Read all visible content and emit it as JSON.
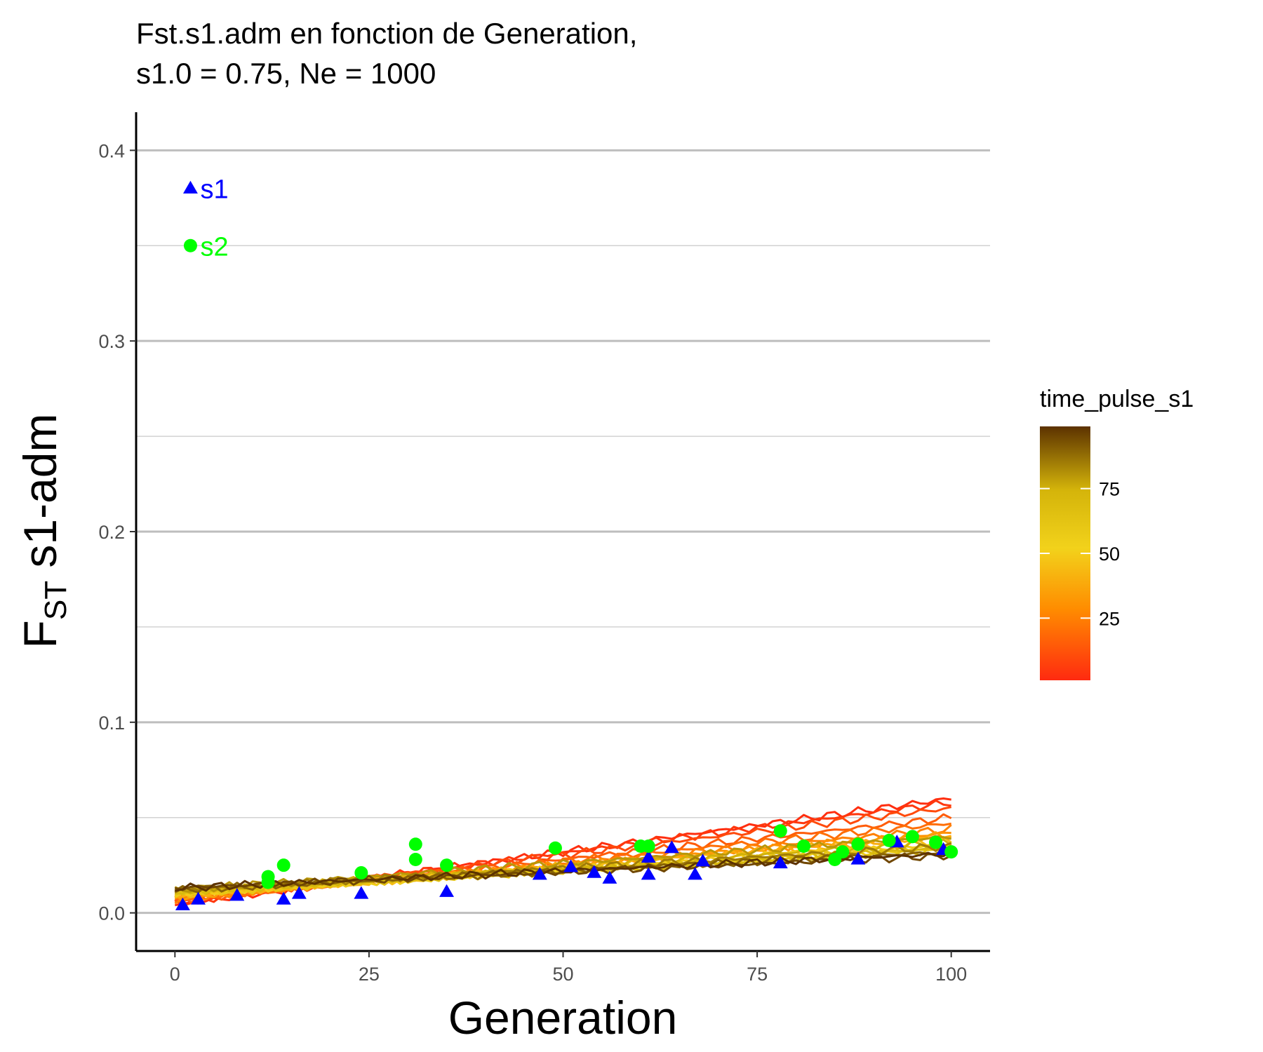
{
  "chart_data": {
    "type": "line",
    "title_line1": "Fst.s1.adm en fonction de Generation,",
    "title_line2": "s1.0 = 0.75, Ne = 1000",
    "xlabel": "Generation",
    "ylabel_main": "F",
    "ylabel_sub": "ST",
    "ylabel_rest": " s1-adm",
    "xlim": [
      -5,
      105
    ],
    "ylim": [
      -0.02,
      0.42
    ],
    "x_ticks": [
      0,
      25,
      50,
      75,
      100
    ],
    "x_tick_labels": [
      "0",
      "25",
      "50",
      "75",
      "100"
    ],
    "y_ticks": [
      0.0,
      0.1,
      0.2,
      0.3,
      0.4
    ],
    "y_tick_labels": [
      "0.0",
      "0.1",
      "0.2",
      "0.3",
      "0.4"
    ],
    "y_minor_gridlines": [
      0.05,
      0.15,
      0.25,
      0.35
    ],
    "grid": "horizontal",
    "legend": {
      "title": "time_pulse_s1",
      "position": "right",
      "type": "colorbar",
      "breaks": [
        25,
        50,
        75
      ],
      "break_labels": [
        "25",
        "50",
        "75"
      ],
      "range": [
        1,
        99
      ],
      "colors": [
        "#ff2a10",
        "#ff8c00",
        "#f2d21b",
        "#d4b40a",
        "#5c3200"
      ]
    },
    "annotations": [
      {
        "label": "s1",
        "marker": "triangle",
        "color": "#0000ff",
        "x": 2,
        "y": 0.38
      },
      {
        "label": "s2",
        "marker": "circle",
        "color": "#00ff00",
        "x": 2,
        "y": 0.35
      }
    ],
    "series": [
      {
        "time_pulse_s1": 2,
        "y0": 0.004,
        "y1": 0.06
      },
      {
        "time_pulse_s1": 5,
        "y0": 0.005,
        "y1": 0.058
      },
      {
        "time_pulse_s1": 10,
        "y0": 0.006,
        "y1": 0.055
      },
      {
        "time_pulse_s1": 15,
        "y0": 0.006,
        "y1": 0.05
      },
      {
        "time_pulse_s1": 20,
        "y0": 0.007,
        "y1": 0.047
      },
      {
        "time_pulse_s1": 25,
        "y0": 0.007,
        "y1": 0.044
      },
      {
        "time_pulse_s1": 30,
        "y0": 0.008,
        "y1": 0.042
      },
      {
        "time_pulse_s1": 35,
        "y0": 0.008,
        "y1": 0.041
      },
      {
        "time_pulse_s1": 40,
        "y0": 0.009,
        "y1": 0.04
      },
      {
        "time_pulse_s1": 45,
        "y0": 0.009,
        "y1": 0.038
      },
      {
        "time_pulse_s1": 50,
        "y0": 0.01,
        "y1": 0.036
      },
      {
        "time_pulse_s1": 55,
        "y0": 0.01,
        "y1": 0.035
      },
      {
        "time_pulse_s1": 60,
        "y0": 0.01,
        "y1": 0.034
      },
      {
        "time_pulse_s1": 65,
        "y0": 0.011,
        "y1": 0.033
      },
      {
        "time_pulse_s1": 70,
        "y0": 0.011,
        "y1": 0.034
      },
      {
        "time_pulse_s1": 75,
        "y0": 0.011,
        "y1": 0.037
      },
      {
        "time_pulse_s1": 80,
        "y0": 0.012,
        "y1": 0.04
      },
      {
        "time_pulse_s1": 85,
        "y0": 0.012,
        "y1": 0.035
      },
      {
        "time_pulse_s1": 90,
        "y0": 0.012,
        "y1": 0.032
      },
      {
        "time_pulse_s1": 95,
        "y0": 0.013,
        "y1": 0.03
      },
      {
        "time_pulse_s1": 99,
        "y0": 0.013,
        "y1": 0.031
      }
    ],
    "points_s1": [
      {
        "x": 1,
        "y": 0.004
      },
      {
        "x": 3,
        "y": 0.007
      },
      {
        "x": 8,
        "y": 0.009
      },
      {
        "x": 14,
        "y": 0.007
      },
      {
        "x": 16,
        "y": 0.01
      },
      {
        "x": 24,
        "y": 0.01
      },
      {
        "x": 35,
        "y": 0.011
      },
      {
        "x": 47,
        "y": 0.02
      },
      {
        "x": 51,
        "y": 0.024
      },
      {
        "x": 54,
        "y": 0.021
      },
      {
        "x": 56,
        "y": 0.018
      },
      {
        "x": 61,
        "y": 0.029
      },
      {
        "x": 61,
        "y": 0.02
      },
      {
        "x": 64,
        "y": 0.034
      },
      {
        "x": 67,
        "y": 0.02
      },
      {
        "x": 68,
        "y": 0.027
      },
      {
        "x": 78,
        "y": 0.026
      },
      {
        "x": 88,
        "y": 0.028
      },
      {
        "x": 93,
        "y": 0.037
      },
      {
        "x": 99,
        "y": 0.033
      }
    ],
    "points_s2": [
      {
        "x": 12,
        "y": 0.016
      },
      {
        "x": 12,
        "y": 0.019
      },
      {
        "x": 14,
        "y": 0.025
      },
      {
        "x": 24,
        "y": 0.021
      },
      {
        "x": 31,
        "y": 0.028
      },
      {
        "x": 31,
        "y": 0.036
      },
      {
        "x": 35,
        "y": 0.025
      },
      {
        "x": 49,
        "y": 0.034
      },
      {
        "x": 60,
        "y": 0.035
      },
      {
        "x": 61,
        "y": 0.035
      },
      {
        "x": 78,
        "y": 0.043
      },
      {
        "x": 81,
        "y": 0.035
      },
      {
        "x": 85,
        "y": 0.028
      },
      {
        "x": 86,
        "y": 0.032
      },
      {
        "x": 88,
        "y": 0.036
      },
      {
        "x": 92,
        "y": 0.038
      },
      {
        "x": 95,
        "y": 0.04
      },
      {
        "x": 98,
        "y": 0.037
      },
      {
        "x": 100,
        "y": 0.032
      }
    ]
  }
}
